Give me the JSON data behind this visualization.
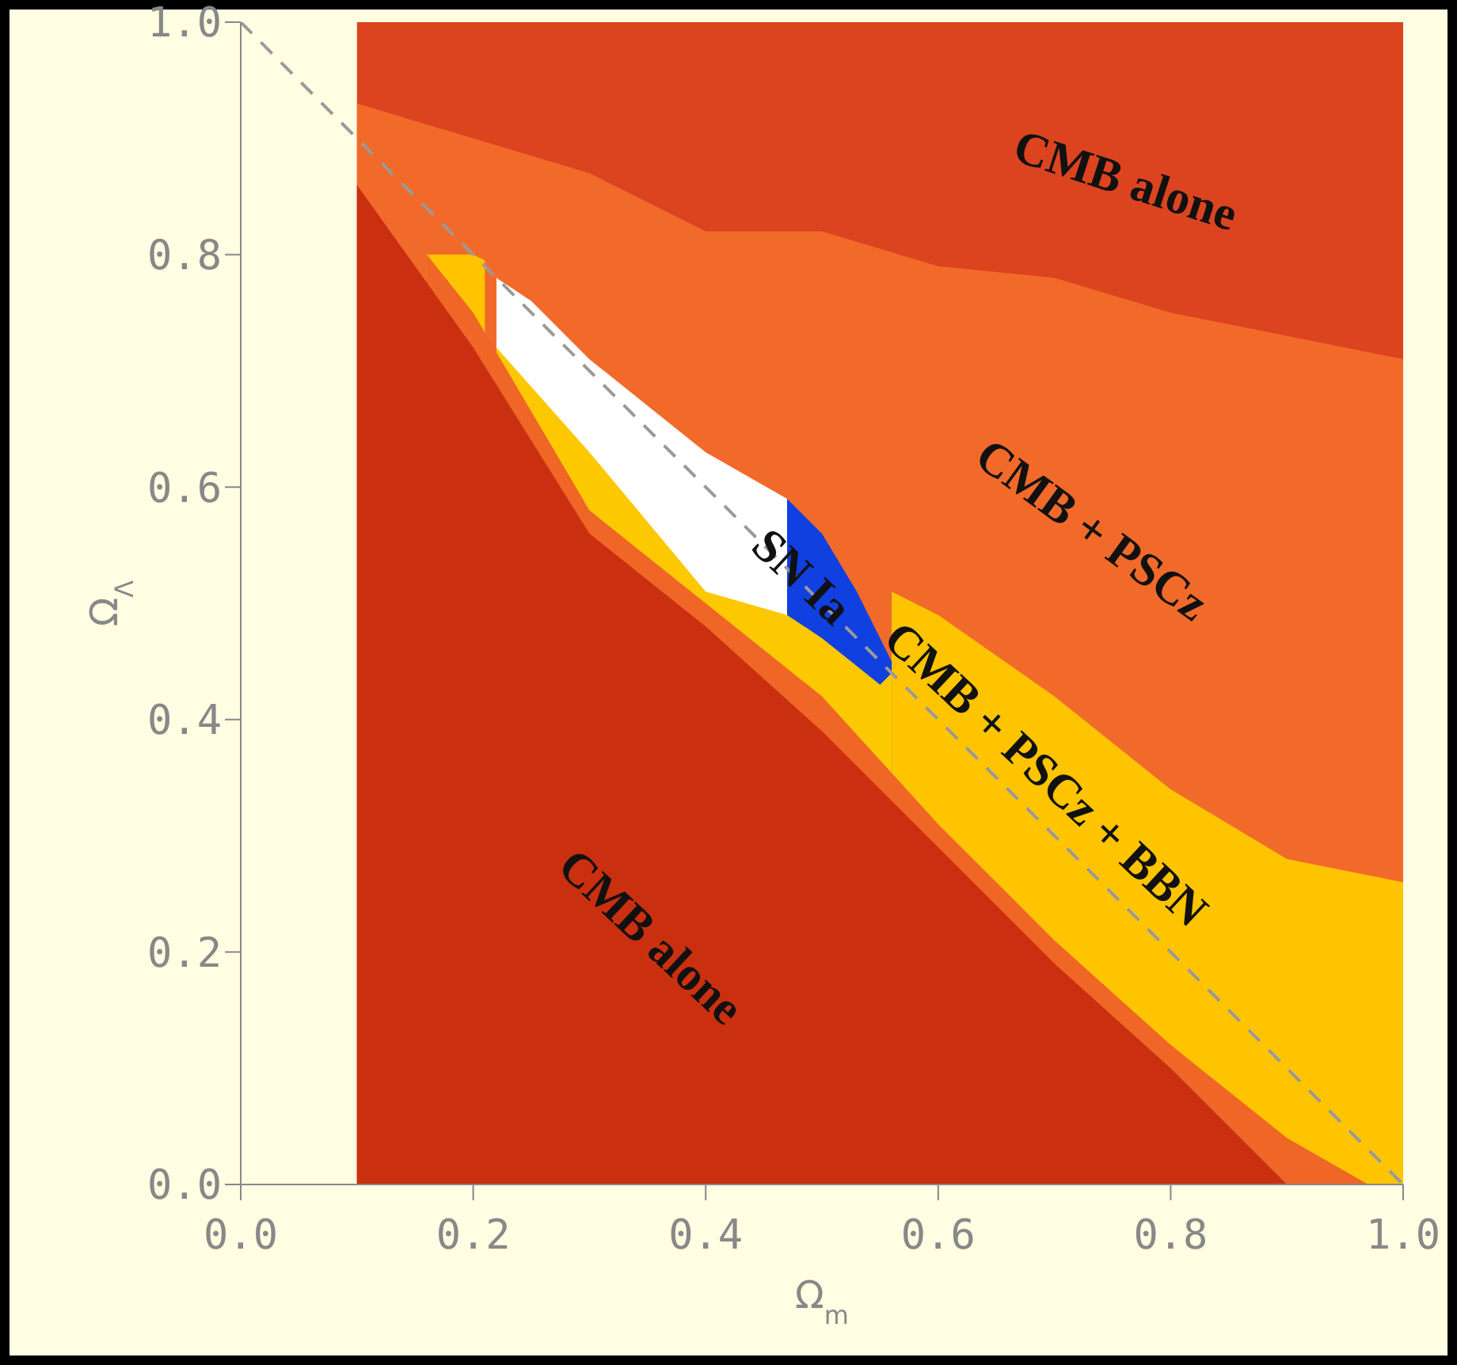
{
  "chart_data": {
    "type": "area",
    "xlabel": "Ω$_{m}$",
    "ylabel": "Ω$_{Λ}$",
    "xlim": [
      0,
      1
    ],
    "ylim": [
      0,
      1
    ],
    "xticks": [
      {
        "value": 0,
        "label": "0.0"
      },
      {
        "value": 0.2,
        "label": "0.2"
      },
      {
        "value": 0.4,
        "label": "0.4"
      },
      {
        "value": 0.6,
        "label": "0.6"
      },
      {
        "value": 0.8,
        "label": "0.8"
      },
      {
        "value": 1,
        "label": "1.0"
      }
    ],
    "yticks": [
      {
        "value": 0,
        "label": "0.0"
      },
      {
        "value": 0.2,
        "label": "0.2"
      },
      {
        "value": 0.4,
        "label": "0.4"
      },
      {
        "value": 0.6,
        "label": "0.6"
      },
      {
        "value": 0.8,
        "label": "0.8"
      },
      {
        "value": 1,
        "label": "1.0"
      }
    ],
    "grid": false,
    "legend": false,
    "series": [
      {
        "color": "#dc4420",
        "x": [
          0.1,
          1
        ],
        "values": [
          1,
          1
        ]
      },
      {
        "color": "#f26a2a",
        "x": [
          0.1,
          0.2,
          0.3,
          0.4,
          0.5,
          0.6,
          0.7,
          0.8,
          0.9,
          1
        ],
        "values": [
          0.93,
          0.9,
          0.87,
          0.82,
          0.82,
          0.79,
          0.78,
          0.75,
          0.73,
          0.71
        ]
      },
      {
        "color": "#ffc400",
        "x": [
          0.16,
          0.2,
          0.21,
          0.3,
          0.4,
          0.5,
          0.56,
          0.6,
          0.7,
          0.8,
          0.9,
          1
        ],
        "values": [
          0.8,
          0.8,
          0.795,
          null,
          null,
          null,
          0.51,
          0.49,
          0.42,
          0.34,
          0.28,
          0.26
        ]
      },
      {
        "color": "#1040e0",
        "x": [
          0.47,
          0.5,
          0.53,
          0.55,
          0.56
        ],
        "values": [
          0.59,
          0.56,
          0.51,
          0.47,
          0.45
        ]
      },
      {
        "color": "#ffffff",
        "x": [
          0.22,
          0.25,
          0.3,
          0.35,
          0.4,
          0.47
        ],
        "values": [
          0.78,
          0.76,
          0.71,
          0.67,
          0.63,
          0.59
        ]
      },
      {
        "color": "#fcc800",
        "x": [
          0.22,
          0.3,
          0.4,
          0.47,
          0.5,
          0.55,
          0.56
        ],
        "values": [
          0.72,
          0.63,
          0.51,
          0.49,
          0.47,
          0.43,
          0.44
        ]
      },
      {
        "color": "#ef6626",
        "x": [
          0.16,
          0.2,
          0.3,
          0.4,
          0.5,
          0.6,
          0.7,
          0.8,
          0.9,
          0.97,
          1
        ],
        "values": [
          0.8,
          0.75,
          0.58,
          0.5,
          0.42,
          0.31,
          0.21,
          0.12,
          0.04,
          0,
          0
        ]
      },
      {
        "color": "#ca3010",
        "x": [
          0.1,
          0.2,
          0.3,
          0.4,
          0.5,
          0.6,
          0.7,
          0.8,
          0.9,
          1
        ],
        "values": [
          0.86,
          0.72,
          0.56,
          0.48,
          0.39,
          0.29,
          0.19,
          0.1,
          0,
          0
        ]
      },
      {
        "type": "line",
        "color": "#9a9a9a",
        "line_style": "dashed",
        "x": [
          0,
          1
        ],
        "values": [
          1,
          0
        ]
      }
    ],
    "annotations": [
      "CMB alone",
      "CMB + PSCz",
      "CMB + PSCz + BBN",
      "CMB alone",
      "SN Ia"
    ]
  }
}
